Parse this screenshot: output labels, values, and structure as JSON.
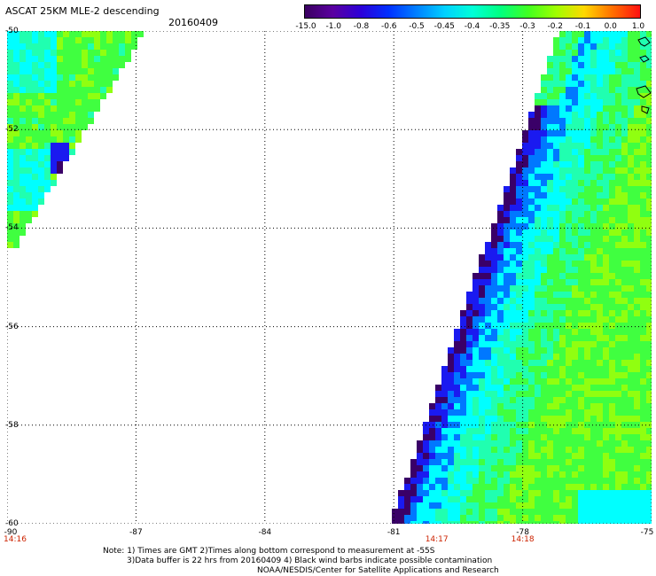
{
  "header": {
    "title": "ASCAT 25KM MLE-2 descending",
    "date": "20160409"
  },
  "colorbar": {
    "tick_labels": [
      "-15.0",
      "-1.0",
      "-0.8",
      "-0.6",
      "-0.5",
      "-0.45",
      "-0.4",
      "-0.35",
      "-0.3",
      "-0.2",
      "-0.1",
      "0.0",
      "1.0"
    ],
    "colors": [
      "#3a0060",
      "#5a00a0",
      "#2c00d8",
      "#0030ff",
      "#0080ff",
      "#00d0ff",
      "#00ffd8",
      "#00ff80",
      "#40ff20",
      "#a0ff00",
      "#ffd800",
      "#ff7000",
      "#ff1010"
    ]
  },
  "map": {
    "lat_range": [
      -60,
      -50
    ],
    "lon_range": [
      -90,
      -75
    ],
    "lat_labels": [
      "-50",
      "-52",
      "-54",
      "-56",
      "-58",
      "-60"
    ],
    "lon_labels": [
      "-90",
      "-87",
      "-84",
      "-81",
      "-78",
      "-75"
    ],
    "time_labels": [
      {
        "lon": -90,
        "text": "14:16"
      },
      {
        "lon": -80,
        "text": "14:17"
      },
      {
        "lon": -78,
        "text": "14:18"
      }
    ],
    "colors": {
      "purple": "#3a0068",
      "blue": "#1a1af0",
      "mid_blue": "#0078ff",
      "cyan": "#00ffff",
      "aqua": "#20ffb0",
      "green": "#40ff40",
      "lime": "#90ff10"
    }
  },
  "notes": {
    "line1": "Note: 1) Times are GMT 2)Times along bottom correspond to measurement at -55S",
    "line2": "3)Data buffer is 22 hrs from 20160409 4) Black wind barbs indicate possible contamination",
    "line3": "NOAA/NESDIS/Center for Satellite Applications and Research"
  }
}
